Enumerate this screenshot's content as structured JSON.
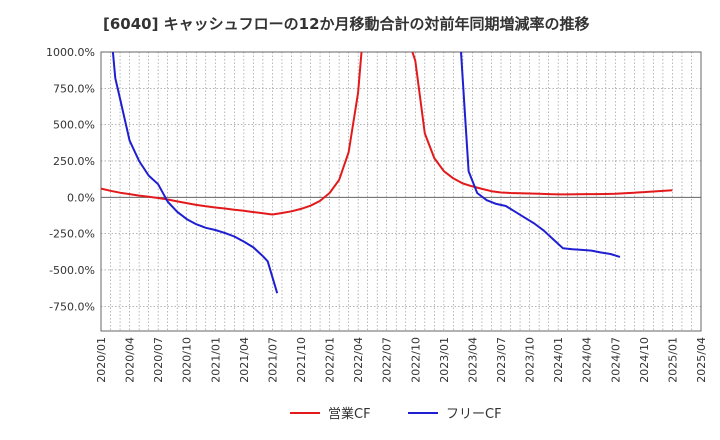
{
  "chart_data": {
    "type": "line",
    "title": "[6040]  キャッシュフローの12か月移動合計の対前年同期増減率の推移",
    "xlabel": "",
    "ylabel": "",
    "ylim": [
      -920,
      1000
    ],
    "yticks": [
      1000,
      750,
      500,
      250,
      0,
      -250,
      -500,
      -750
    ],
    "ytick_labels": [
      "1000.0%",
      "750.0%",
      "500.0%",
      "250.0%",
      "0.0%",
      "-250.0%",
      "-500.0%",
      "-750.0%"
    ],
    "xlim_months": [
      0,
      63
    ],
    "xticks": [
      {
        "label": "2020/01",
        "m": 0
      },
      {
        "label": "2020/04",
        "m": 3
      },
      {
        "label": "2020/07",
        "m": 6
      },
      {
        "label": "2020/10",
        "m": 9
      },
      {
        "label": "2021/01",
        "m": 12
      },
      {
        "label": "2021/04",
        "m": 15
      },
      {
        "label": "2021/07",
        "m": 18
      },
      {
        "label": "2021/10",
        "m": 21
      },
      {
        "label": "2022/01",
        "m": 24
      },
      {
        "label": "2022/04",
        "m": 27
      },
      {
        "label": "2022/07",
        "m": 30
      },
      {
        "label": "2022/10",
        "m": 33
      },
      {
        "label": "2023/01",
        "m": 36
      },
      {
        "label": "2023/04",
        "m": 39
      },
      {
        "label": "2023/07",
        "m": 42
      },
      {
        "label": "2023/10",
        "m": 45
      },
      {
        "label": "2024/01",
        "m": 48
      },
      {
        "label": "2024/04",
        "m": 51
      },
      {
        "label": "2024/07",
        "m": 54
      },
      {
        "label": "2024/10",
        "m": 57
      },
      {
        "label": "2025/01",
        "m": 60
      },
      {
        "label": "2025/04",
        "m": 63
      }
    ],
    "series": [
      {
        "name": "営業CF",
        "color": "#e31a1c",
        "segments": [
          [
            [
              0,
              60
            ],
            [
              1,
              45
            ],
            [
              2,
              32
            ],
            [
              3,
              22
            ],
            [
              4,
              12
            ],
            [
              5,
              4
            ],
            [
              6,
              -5
            ],
            [
              7,
              -15
            ],
            [
              8,
              -28
            ],
            [
              9,
              -40
            ],
            [
              10,
              -52
            ],
            [
              11,
              -62
            ],
            [
              12,
              -70
            ],
            [
              13,
              -77
            ],
            [
              14,
              -85
            ],
            [
              15,
              -93
            ],
            [
              16,
              -102
            ],
            [
              17,
              -110
            ],
            [
              18,
              -118
            ],
            [
              19,
              -108
            ],
            [
              20,
              -96
            ],
            [
              21,
              -80
            ],
            [
              22,
              -58
            ],
            [
              23,
              -25
            ],
            [
              24,
              30
            ],
            [
              25,
              120
            ],
            [
              26,
              310
            ],
            [
              27,
              720
            ],
            [
              27.35,
              1000
            ]
          ],
          [
            [
              32.7,
              1000
            ],
            [
              33,
              940
            ],
            [
              34,
              440
            ],
            [
              35,
              270
            ],
            [
              36,
              180
            ],
            [
              37,
              130
            ],
            [
              38,
              95
            ],
            [
              39,
              75
            ],
            [
              40,
              58
            ],
            [
              41,
              42
            ],
            [
              42,
              33
            ],
            [
              43,
              30
            ],
            [
              44,
              28
            ],
            [
              45,
              26
            ],
            [
              46,
              24
            ],
            [
              47,
              22
            ],
            [
              48,
              20
            ],
            [
              49,
              20
            ],
            [
              50,
              21
            ],
            [
              51,
              22
            ],
            [
              52,
              22
            ],
            [
              53,
              23
            ],
            [
              54,
              24
            ],
            [
              55,
              28
            ],
            [
              56,
              32
            ],
            [
              57,
              36
            ],
            [
              58,
              40
            ],
            [
              59,
              44
            ],
            [
              60,
              48
            ]
          ]
        ]
      },
      {
        "name": "フリーCF",
        "color": "#1f1fd1",
        "segments": [
          [
            [
              1.25,
              1000
            ],
            [
              1.5,
              820
            ],
            [
              2,
              680
            ],
            [
              3,
              390
            ],
            [
              4,
              250
            ],
            [
              5,
              150
            ],
            [
              6,
              90
            ],
            [
              7,
              -30
            ],
            [
              8,
              -100
            ],
            [
              9,
              -150
            ],
            [
              10,
              -185
            ],
            [
              11,
              -210
            ],
            [
              12,
              -225
            ],
            [
              13,
              -245
            ],
            [
              14,
              -270
            ],
            [
              15,
              -305
            ],
            [
              16,
              -345
            ],
            [
              17,
              -405
            ],
            [
              17.5,
              -440
            ],
            [
              18.5,
              -660
            ]
          ],
          [
            [
              37.8,
              1000
            ],
            [
              38.6,
              180
            ],
            [
              39.5,
              30
            ],
            [
              40.5,
              -20
            ],
            [
              41.5,
              -45
            ],
            [
              42.5,
              -60
            ],
            [
              43.5,
              -100
            ],
            [
              44.5,
              -140
            ],
            [
              45.5,
              -180
            ],
            [
              46.5,
              -230
            ],
            [
              47.5,
              -290
            ],
            [
              48.5,
              -350
            ],
            [
              49.5,
              -358
            ],
            [
              50.5,
              -362
            ],
            [
              51.5,
              -367
            ],
            [
              52.5,
              -380
            ],
            [
              53.5,
              -390
            ],
            [
              54.5,
              -410
            ]
          ]
        ]
      }
    ],
    "grid": true,
    "legend": "bottom-center"
  }
}
